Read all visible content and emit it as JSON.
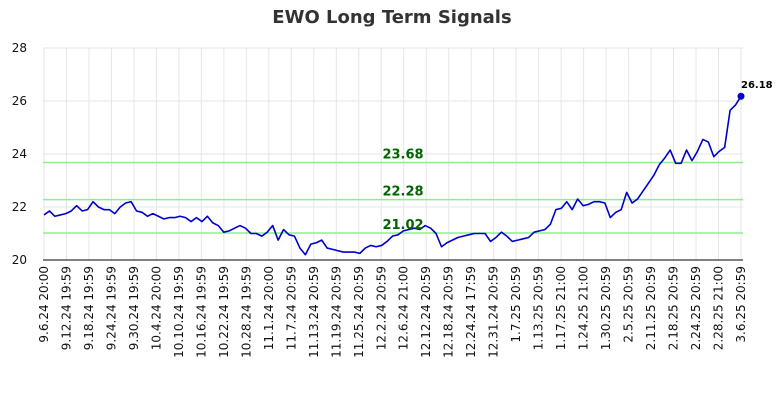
{
  "chart_data": {
    "type": "line",
    "title": "EWO Long Term Signals",
    "xlabel": "",
    "ylabel": "",
    "ylim": [
      20,
      28
    ],
    "yticks": [
      20,
      22,
      24,
      26,
      28
    ],
    "grid": true,
    "legend": "none",
    "x_tick_labels": [
      "9.6.24 20:00",
      "9.12.24 19:59",
      "9.18.24 19:59",
      "9.24.24 19:59",
      "9.30.24 19:59",
      "10.4.24 20:00",
      "10.10.24 19:59",
      "10.16.24 19:59",
      "10.22.24 19:59",
      "10.28.24 19:59",
      "11.1.24 20:00",
      "11.7.24 20:59",
      "11.13.24 20:59",
      "11.19.24 20:59",
      "11.25.24 20:59",
      "12.2.24 20:59",
      "12.6.24 21:00",
      "12.12.24 20:59",
      "12.18.24 20:59",
      "12.24.24 17:59",
      "12.31.24 20:59",
      "1.7.25 20:59",
      "1.13.25 20:59",
      "1.17.25 21:00",
      "1.24.25 21:00",
      "1.30.25 20:59",
      "2.5.25 20:59",
      "2.11.25 20:59",
      "2.18.25 20:59",
      "2.24.25 20:59",
      "2.28.25 21:00",
      "3.6.25 20:59"
    ],
    "series": [
      {
        "color": "#0000cc",
        "values": [
          21.7,
          21.85,
          21.65,
          21.7,
          21.75,
          21.85,
          22.05,
          21.85,
          21.9,
          22.2,
          22.0,
          21.9,
          21.9,
          21.75,
          22.0,
          22.15,
          22.2,
          21.85,
          21.8,
          21.65,
          21.75,
          21.65,
          21.55,
          21.6,
          21.6,
          21.65,
          21.6,
          21.45,
          21.6,
          21.45,
          21.65,
          21.4,
          21.3,
          21.05,
          21.1,
          21.2,
          21.3,
          21.2,
          21.0,
          21.0,
          20.9,
          21.05,
          21.3,
          20.75,
          21.15,
          20.95,
          20.9,
          20.45,
          20.2,
          20.6,
          20.65,
          20.75,
          20.45,
          20.4,
          20.35,
          20.3,
          20.3,
          20.3,
          20.25,
          20.45,
          20.55,
          20.5,
          20.55,
          20.7,
          20.9,
          20.95,
          21.1,
          21.15,
          21.2,
          21.15,
          21.3,
          21.2,
          21.0,
          20.5,
          20.65,
          20.75,
          20.85,
          20.9,
          20.95,
          21.0,
          21.0,
          21.0,
          20.7,
          20.85,
          21.05,
          20.9,
          20.7,
          20.75,
          20.8,
          20.85,
          21.05,
          21.1,
          21.15,
          21.35,
          21.9,
          21.95,
          22.2,
          21.9,
          22.3,
          22.05,
          22.1,
          22.2,
          22.2,
          22.15,
          21.6,
          21.8,
          21.9,
          22.55,
          22.15,
          22.3,
          22.6,
          22.9,
          23.2,
          23.6,
          23.85,
          24.15,
          23.65,
          23.65,
          24.15,
          23.75,
          24.1,
          24.55,
          24.45,
          23.9,
          24.1,
          24.25,
          25.65,
          25.85,
          26.18
        ]
      }
    ],
    "signals": [
      {
        "value": 23.68,
        "label": "23.68",
        "line_color": "#90ee90",
        "text_color": "#006400"
      },
      {
        "value": 22.28,
        "label": "22.28",
        "line_color": "#90ee90",
        "text_color": "#006400"
      },
      {
        "value": 21.02,
        "label": "21.02",
        "line_color": "#90ee90",
        "text_color": "#006400"
      }
    ],
    "last_point": {
      "value": 26.18,
      "label": "26.18"
    }
  }
}
